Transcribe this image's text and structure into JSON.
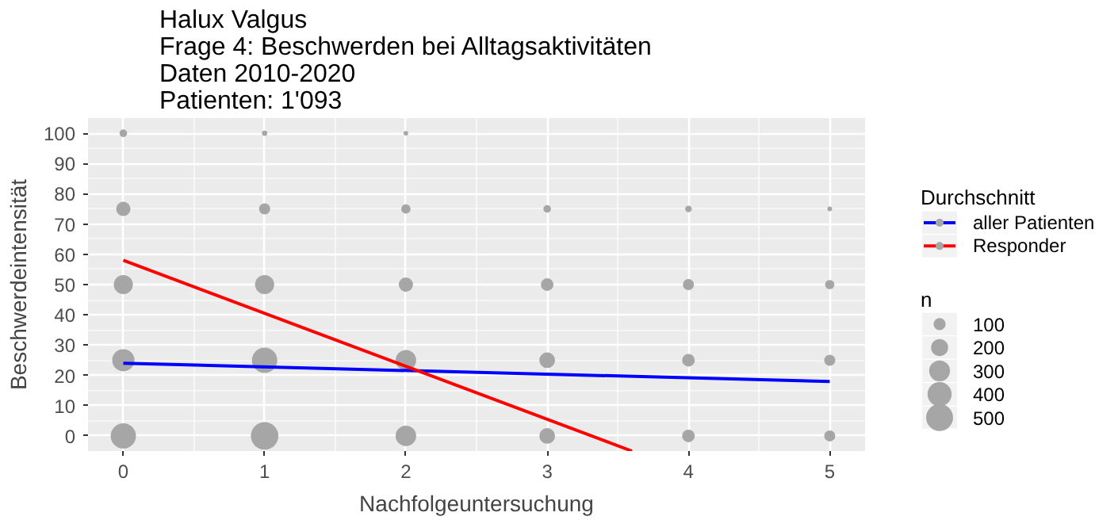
{
  "chart_data": {
    "type": "bubble",
    "title": "Halux Valgus\nFrage 4: Beschwerden bei Alltagsaktivitäten\nDaten 2010-2020\nPatienten: 1'093",
    "xlabel": "Nachfolgeuntersuchung",
    "ylabel": "Beschwerdeintensität",
    "legend_title": "Durchschnitt",
    "annotations": [
      "n"
    ],
    "size_legend": [
      100,
      200,
      300,
      400,
      500
    ],
    "series": [
      {
        "color": "#a6a6a6",
        "x": [
          0,
          0,
          0,
          0,
          0,
          1,
          1,
          1,
          1,
          1,
          2,
          2,
          2,
          2,
          2,
          3,
          3,
          3,
          3,
          4,
          4,
          4,
          4,
          5,
          5,
          5,
          5
        ],
        "values": [
          100,
          75,
          50,
          25,
          0,
          100,
          75,
          50,
          25,
          0,
          100,
          75,
          50,
          25,
          0,
          75,
          50,
          25,
          0,
          75,
          50,
          25,
          0,
          75,
          50,
          25,
          0
        ],
        "sizes": [
          40,
          140,
          250,
          340,
          440,
          20,
          85,
          250,
          440,
          520,
          15,
          60,
          140,
          290,
          290,
          40,
          110,
          170,
          170,
          30,
          85,
          110,
          110,
          15,
          60,
          85,
          85
        ]
      },
      {
        "type": "line",
        "name": "aller Patienten",
        "color": "#0000ff",
        "x": [
          0,
          5
        ],
        "values": [
          24,
          18
        ]
      },
      {
        "type": "line",
        "name": "Responder",
        "color": "#ff0000",
        "x": [
          0,
          3.6
        ],
        "values": [
          58,
          -5
        ]
      }
    ],
    "xlim": [
      -0.25,
      5.25
    ],
    "ylim": [
      -5,
      105
    ],
    "xticks": [
      0,
      1,
      2,
      3,
      4,
      5
    ],
    "yticks": [
      0,
      10,
      20,
      30,
      40,
      50,
      60,
      70,
      80,
      90,
      100
    ],
    "grid": true,
    "legend": "right"
  }
}
